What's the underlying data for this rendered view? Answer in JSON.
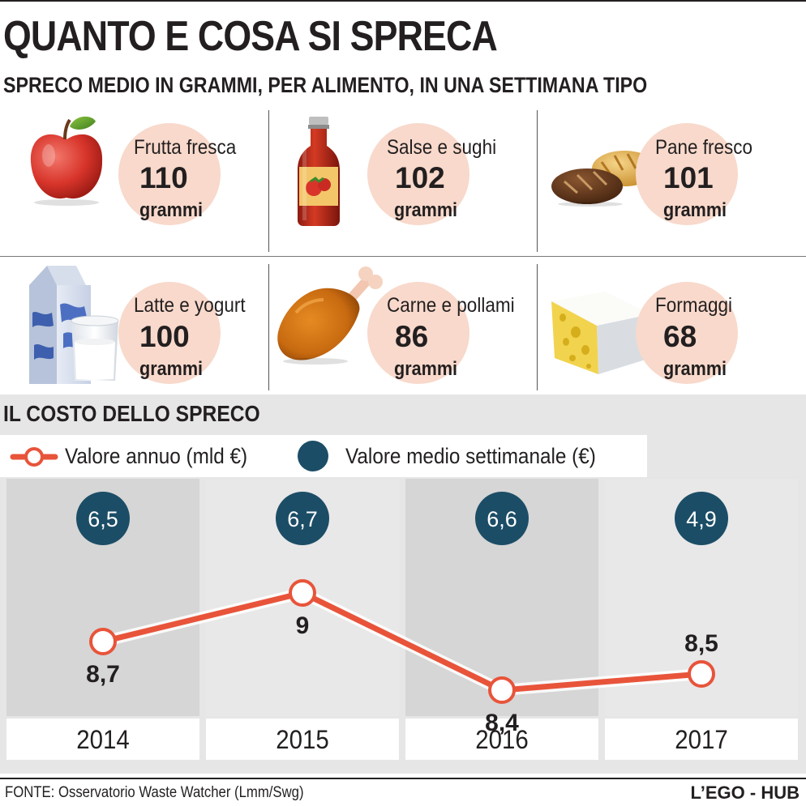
{
  "header": {
    "title": "QUANTO E COSA SI SPRECA",
    "subtitle": "SPRECO MEDIO IN GRAMMI, PER ALIMENTO, IN UNA SETTIMANA TIPO"
  },
  "foods": [
    {
      "name": "Frutta fresca",
      "value": "110",
      "unit": "grammi",
      "icon": "apple-icon"
    },
    {
      "name": "Salse e sughi",
      "value": "102",
      "unit": "grammi",
      "icon": "sauce-bottle-icon"
    },
    {
      "name": "Pane fresco",
      "value": "101",
      "unit": "grammi",
      "icon": "bread-icon"
    },
    {
      "name": "Latte e yogurt",
      "value": "100",
      "unit": "grammi",
      "icon": "milk-carton-icon"
    },
    {
      "name": "Carne e pollami",
      "value": "86",
      "unit": "grammi",
      "icon": "chicken-leg-icon"
    },
    {
      "name": "Formaggi",
      "value": "68",
      "unit": "grammi",
      "icon": "cheese-icon"
    }
  ],
  "cost": {
    "title": "IL COSTO DELLO SPRECO",
    "legend_annual": "Valore annuo (mld €)",
    "legend_weekly": "Valore medio settimanale (€)"
  },
  "colors": {
    "accent_line": "#e8543a",
    "weekly_circle": "#1c4d66",
    "food_circle": "#f8d9cb"
  },
  "chart_data": {
    "type": "line",
    "title": "IL COSTO DELLO SPRECO",
    "categories": [
      "2014",
      "2015",
      "2016",
      "2017"
    ],
    "series": [
      {
        "name": "Valore annuo (mld €)",
        "values": [
          8.7,
          9,
          8.4,
          8.5
        ],
        "labels": [
          "8,7",
          "9",
          "8,4",
          "8,5"
        ]
      },
      {
        "name": "Valore medio settimanale (€)",
        "values": [
          6.5,
          6.7,
          6.6,
          4.9
        ],
        "labels": [
          "6,5",
          "6,7",
          "6,6",
          "4,9"
        ]
      }
    ],
    "xlabel": "",
    "ylabel": ""
  },
  "footer": {
    "source": "FONTE: Osservatorio Waste Watcher (Lmm/Swg)",
    "credit": "L’EGO - HUB"
  }
}
